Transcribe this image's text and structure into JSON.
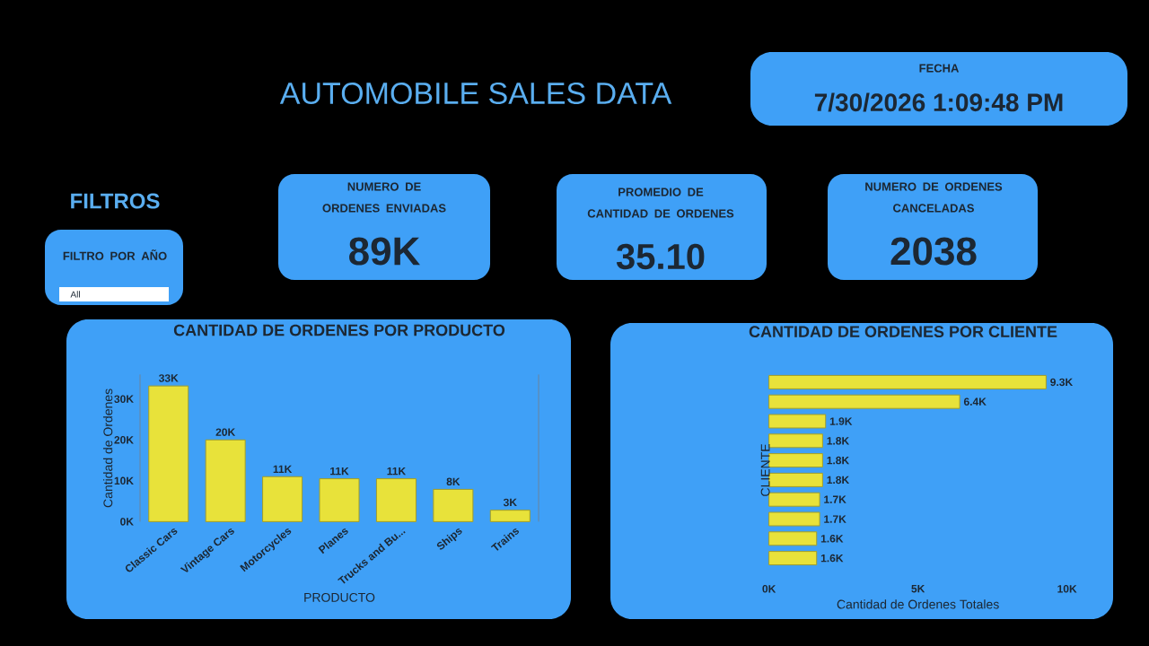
{
  "chart_data": [
    {
      "type": "other",
      "title": "AUTOMOBILE SALES DATA",
      "annotations": [
        "FILTROS",
        "FILTRO POR AÑO",
        "All",
        "FECHA",
        "7/30/2026 1:09:48 PM",
        "NUMERO DE ORDENES ENVIADAS",
        "89K",
        "PROMEDIO DE CANTIDAD DE ORDENES",
        "35.10",
        "NUMERO DE ORDENES CANCELADAS",
        "2038"
      ]
    },
    {
      "type": "bar",
      "title": "CANTIDAD DE ORDENES POR PRODUCTO",
      "xlabel": "PRODUCTO",
      "ylabel": "Cantidad de Ordenes",
      "categories": [
        "Classic Cars",
        "Vintage Cars",
        "Motorcycles",
        "Planes",
        "Trucks and Bu...",
        "Ships",
        "Trains"
      ],
      "values": [
        33200,
        20000,
        11000,
        10500,
        10500,
        7900,
        2800
      ],
      "value_labels": [
        "33K",
        "20K",
        "11K",
        "11K",
        "11K",
        "8K",
        "3K"
      ],
      "color": "#e8e23a",
      "ylim": [
        0,
        36000
      ],
      "yticks": [
        {
          "value": 0,
          "label": "0K"
        },
        {
          "value": 10000,
          "label": "10K"
        },
        {
          "value": 20000,
          "label": "20K"
        },
        {
          "value": 30000,
          "label": "30K"
        }
      ]
    },
    {
      "type": "bar",
      "orientation": "horizontal",
      "title": "CANTIDAD DE ORDENES POR CLIENTE",
      "xlabel": "Cantidad de Ordenes Totales",
      "ylabel": "CLIENTE",
      "categories": [
        null,
        null,
        null,
        null,
        null,
        null,
        null,
        null,
        null,
        null
      ],
      "values": [
        9300,
        6400,
        1900,
        1800,
        1800,
        1800,
        1700,
        1700,
        1600,
        1600
      ],
      "value_labels": [
        "9.3K",
        "6.4K",
        "1.9K",
        "1.8K",
        "1.8K",
        "1.8K",
        "1.7K",
        "1.7K",
        "1.6K",
        "1.6K"
      ],
      "color": "#e8e23a",
      "xlim": [
        0,
        10000
      ],
      "xticks": [
        {
          "value": 0,
          "label": "0K"
        },
        {
          "value": 5000,
          "label": "5K"
        },
        {
          "value": 10000,
          "label": "10K"
        }
      ]
    }
  ]
}
